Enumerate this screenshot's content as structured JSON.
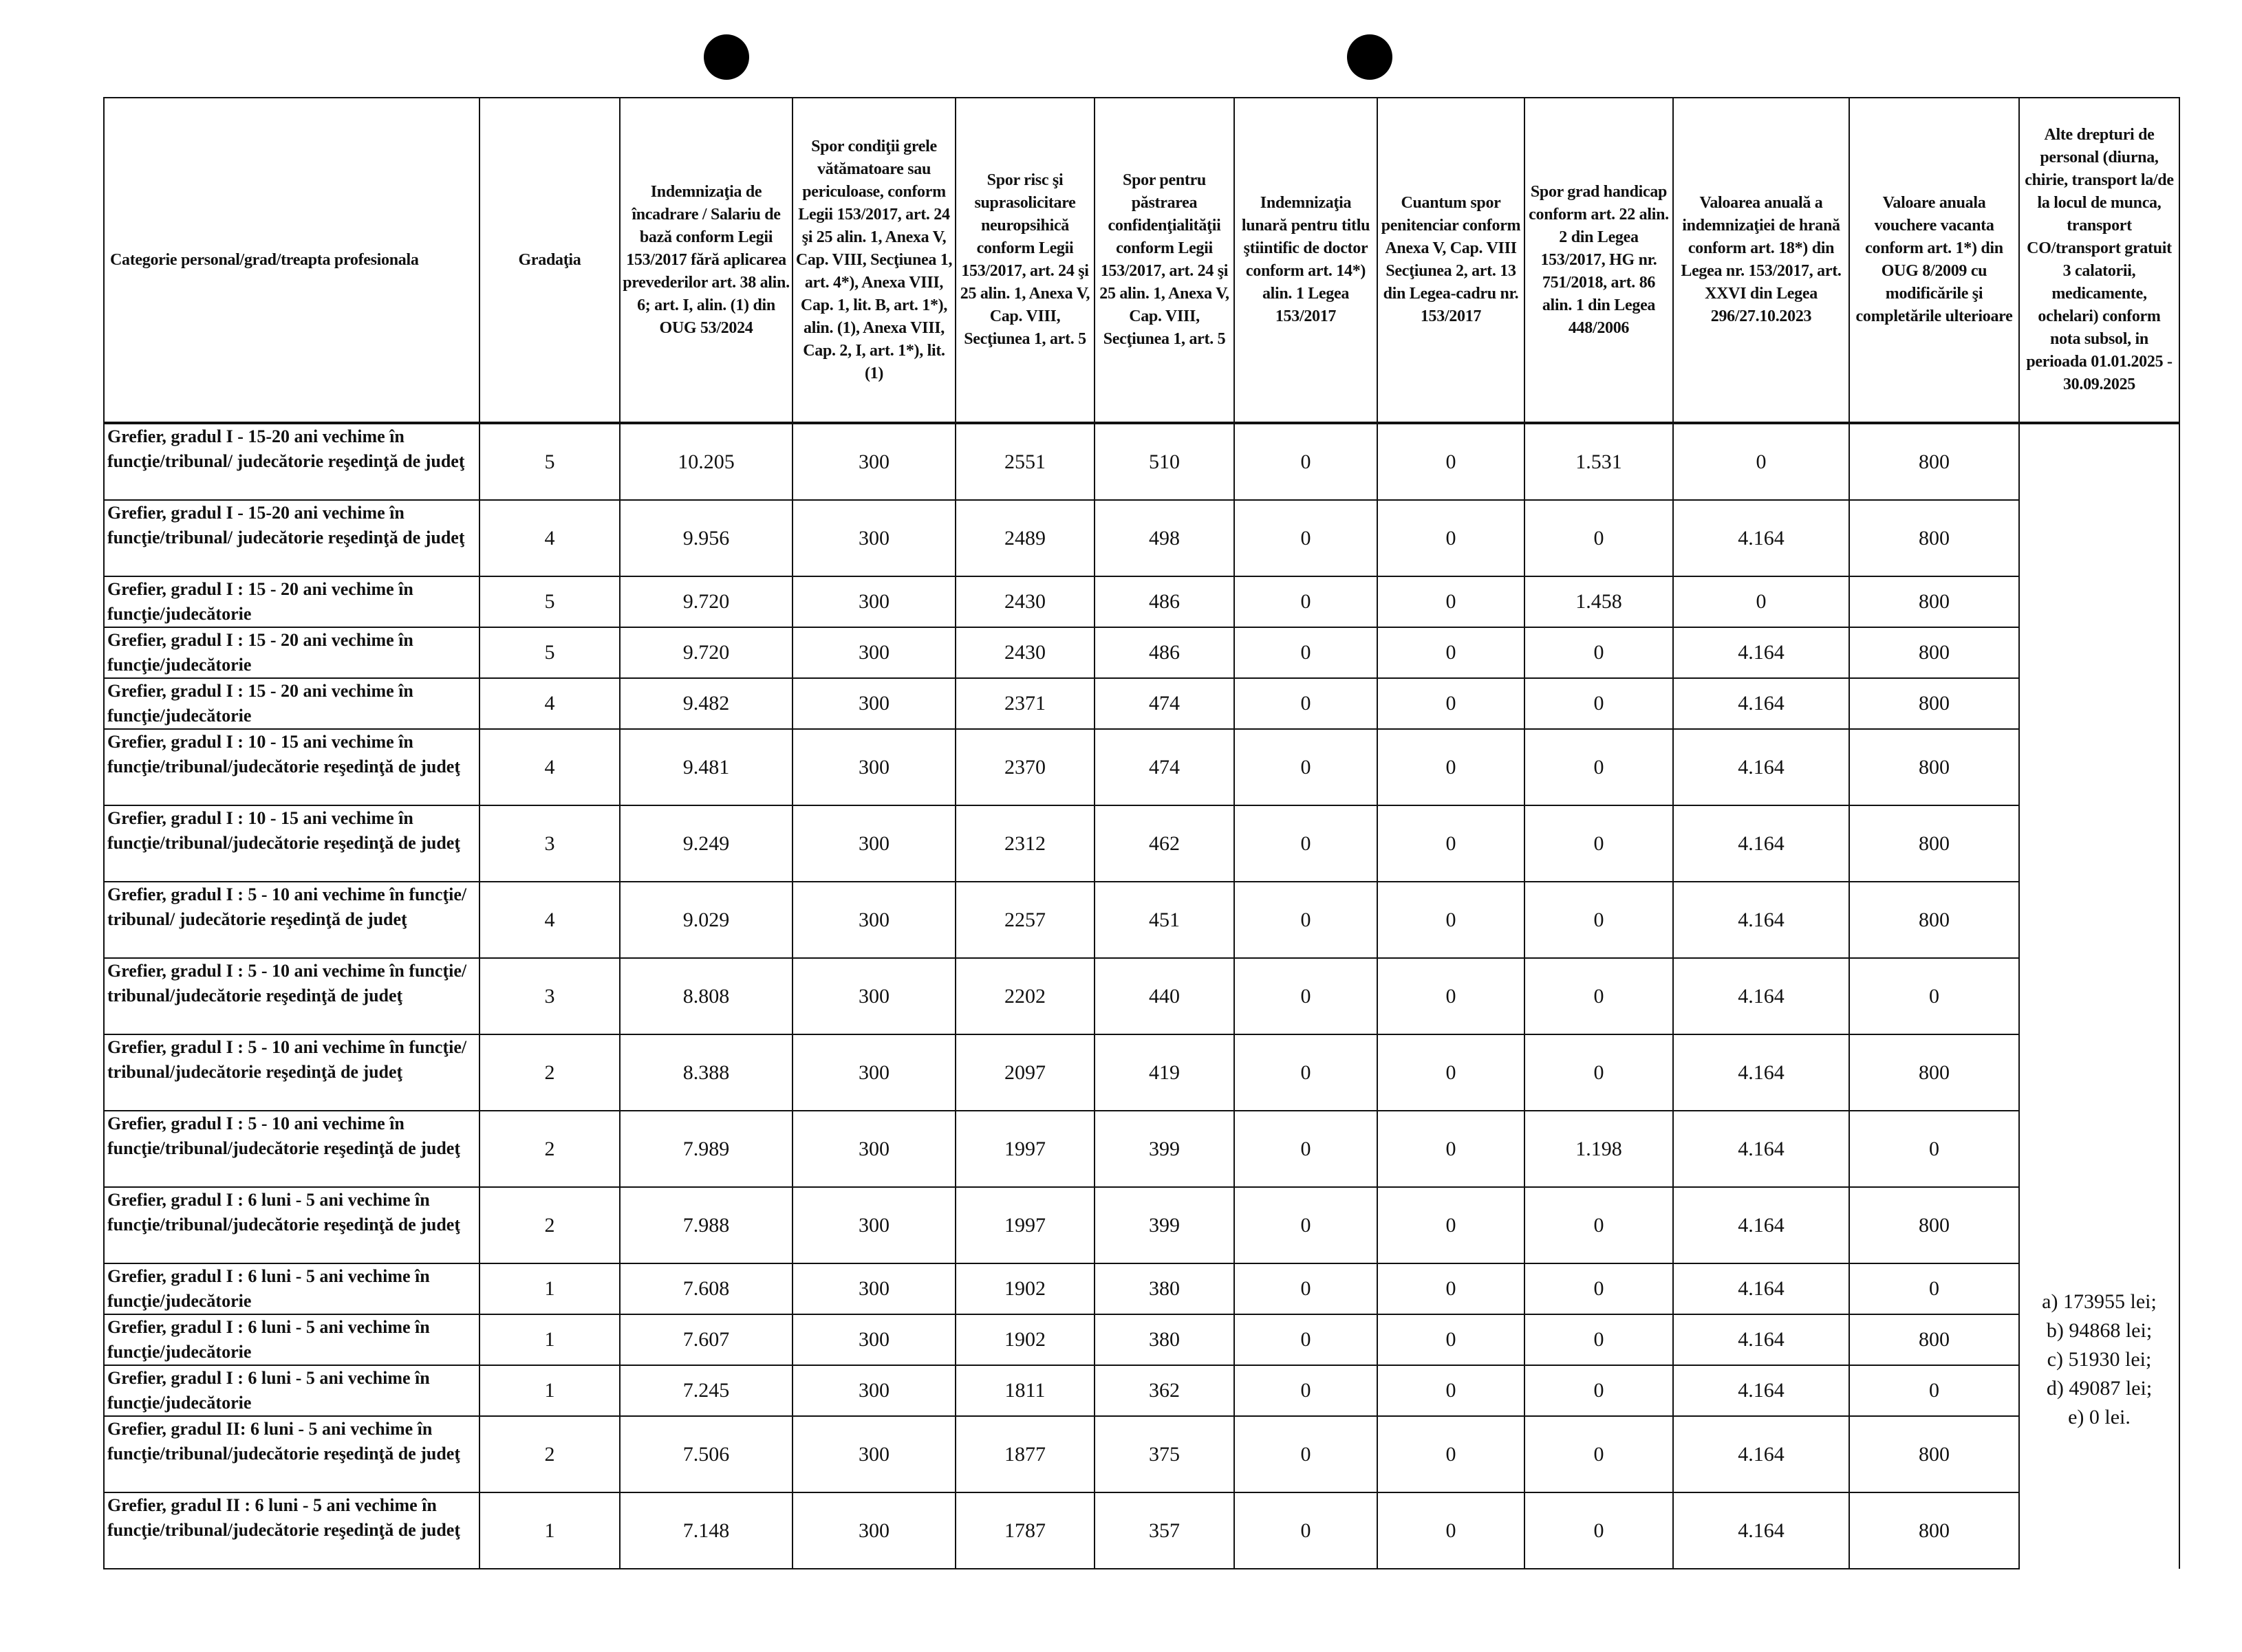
{
  "columns": [
    "Categorie personal/grad/treapta profesionala",
    "Gradaţia",
    "Indemnizaţia de încadrare / Salariu de bază conform Legii 153/2017 fără aplicarea prevederilor art. 38 alin. 6; art. I, alin. (1) din OUG 53/2024",
    "Spor condiţii grele vătămatoare sau periculoase, conform Legii 153/2017, art. 24 şi 25 alin. 1, Anexa V, Cap. VIII, Secţiunea 1, art. 4*), Anexa VIII, Cap. 1, lit. B, art. 1*), alin. (1), Anexa VIII, Cap. 2, I, art. 1*), lit. (1)",
    "Spor risc şi suprasolicitare neuropsihică conform Legii 153/2017, art. 24 şi 25 alin. 1, Anexa V, Cap. VIII, Secţiunea 1, art. 5",
    "Spor pentru păstrarea confidenţialităţii conform Legii 153/2017, art. 24 şi 25 alin. 1, Anexa V, Cap. VIII, Secţiunea 1, art. 5",
    "Indemnizaţia lunară pentru titlu ştiintific de doctor conform art. 14*) alin. 1 Legea 153/2017",
    "Cuantum spor penitenciar conform Anexa V, Cap. VIII Secţiunea 2, art. 13 din Legea-cadru nr. 153/2017",
    "Spor grad handicap conform art. 22 alin. 2 din Legea 153/2017, HG nr. 751/2018, art. 86 alin. 1 din Legea 448/2006",
    "Valoarea anuală a indemnizaţiei de hrană conform art. 18*) din Legea nr. 153/2017, art. XXVI din Legea 296/27.10.2023",
    "Valoare anuala vouchere vacanta conform art. 1*) din OUG 8/2009 cu modificările şi completările ulterioare",
    "Alte drepturi de personal (diurna, chirie, transport la/de la locul de munca, transport CO/transport gratuit 3 calatorii, medicamente, ochelari) conform nota subsol, in perioada 01.01.2025 - 30.09.2025"
  ],
  "rows": [
    [
      "Grefier, gradul I - 15-20 ani vechime în funcţie/tribunal/ judecătorie reşedinţă de judeţ",
      "5",
      "10.205",
      "300",
      "2551",
      "510",
      "0",
      "0",
      "1.531",
      "0",
      "800"
    ],
    [
      "Grefier, gradul I - 15-20 ani vechime în funcţie/tribunal/ judecătorie reşedinţă de judeţ",
      "4",
      "9.956",
      "300",
      "2489",
      "498",
      "0",
      "0",
      "0",
      "4.164",
      "800"
    ],
    [
      "Grefier, gradul I : 15 - 20 ani vechime în funcţie/judecătorie",
      "5",
      "9.720",
      "300",
      "2430",
      "486",
      "0",
      "0",
      "1.458",
      "0",
      "800"
    ],
    [
      "Grefier, gradul I : 15 - 20 ani vechime în funcţie/judecătorie",
      "5",
      "9.720",
      "300",
      "2430",
      "486",
      "0",
      "0",
      "0",
      "4.164",
      "800"
    ],
    [
      "Grefier, gradul I : 15 - 20 ani vechime în funcţie/judecătorie",
      "4",
      "9.482",
      "300",
      "2371",
      "474",
      "0",
      "0",
      "0",
      "4.164",
      "800"
    ],
    [
      "Grefier, gradul I : 10 - 15 ani vechime în funcţie/tribunal/judecătorie reşedinţă de judeţ",
      "4",
      "9.481",
      "300",
      "2370",
      "474",
      "0",
      "0",
      "0",
      "4.164",
      "800"
    ],
    [
      "Grefier, gradul I : 10 - 15 ani vechime în funcţie/tribunal/judecătorie reşedinţă de judeţ",
      "3",
      "9.249",
      "300",
      "2312",
      "462",
      "0",
      "0",
      "0",
      "4.164",
      "800"
    ],
    [
      "Grefier, gradul I :   5 - 10 ani vechime în funcţie/ tribunal/ judecătorie reşedinţă de judeţ",
      "4",
      "9.029",
      "300",
      "2257",
      "451",
      "0",
      "0",
      "0",
      "4.164",
      "800"
    ],
    [
      "Grefier, gradul I :   5 - 10 ani vechime în funcţie/ tribunal/judecătorie reşedinţă de judeţ",
      "3",
      "8.808",
      "300",
      "2202",
      "440",
      "0",
      "0",
      "0",
      "4.164",
      "0"
    ],
    [
      "Grefier, gradul I :   5 - 10 ani vechime în funcţie/ tribunal/judecătorie reşedinţă de judeţ",
      "2",
      "8.388",
      "300",
      "2097",
      "419",
      "0",
      "0",
      "0",
      "4.164",
      "800"
    ],
    [
      "Grefier, gradul I : 5 - 10 ani vechime în funcţie/tribunal/judecătorie reşedinţă de judeţ",
      "2",
      "7.989",
      "300",
      "1997",
      "399",
      "0",
      "0",
      "1.198",
      "4.164",
      "0"
    ],
    [
      "Grefier, gradul I : 6 luni - 5 ani vechime în funcţie/tribunal/judecătorie reşedinţă de judeţ",
      "2",
      "7.988",
      "300",
      "1997",
      "399",
      "0",
      "0",
      "0",
      "4.164",
      "800"
    ],
    [
      "Grefier, gradul I : 6 luni - 5 ani vechime în funcţie/judecătorie",
      "1",
      "7.608",
      "300",
      "1902",
      "380",
      "0",
      "0",
      "0",
      "4.164",
      "0"
    ],
    [
      "Grefier, gradul I : 6 luni - 5 ani vechime în funcţie/judecătorie",
      "1",
      "7.607",
      "300",
      "1902",
      "380",
      "0",
      "0",
      "0",
      "4.164",
      "800"
    ],
    [
      "Grefier, gradul I : 6 luni - 5 ani vechime în funcţie/judecătorie",
      "1",
      "7.245",
      "300",
      "1811",
      "362",
      "0",
      "0",
      "0",
      "4.164",
      "0"
    ],
    [
      "Grefier, gradul II:   6 luni -   5 ani vechime în funcţie/tribunal/judecătorie reşedinţă de judeţ",
      "2",
      "7.506",
      "300",
      "1877",
      "375",
      "0",
      "0",
      "0",
      "4.164",
      "800"
    ],
    [
      "Grefier, gradul II :   6 luni -   5 ani vechime în funcţie/tribunal/judecătorie reşedinţă de judeţ",
      "1",
      "7.148",
      "300",
      "1787",
      "357",
      "0",
      "0",
      "0",
      "4.164",
      "800"
    ]
  ],
  "other_rights": [
    "a) 173955 lei;",
    "b) 94868 lei;",
    "c) 51930 lei;",
    "d) 49087 lei;",
    "e) 0 lei."
  ]
}
